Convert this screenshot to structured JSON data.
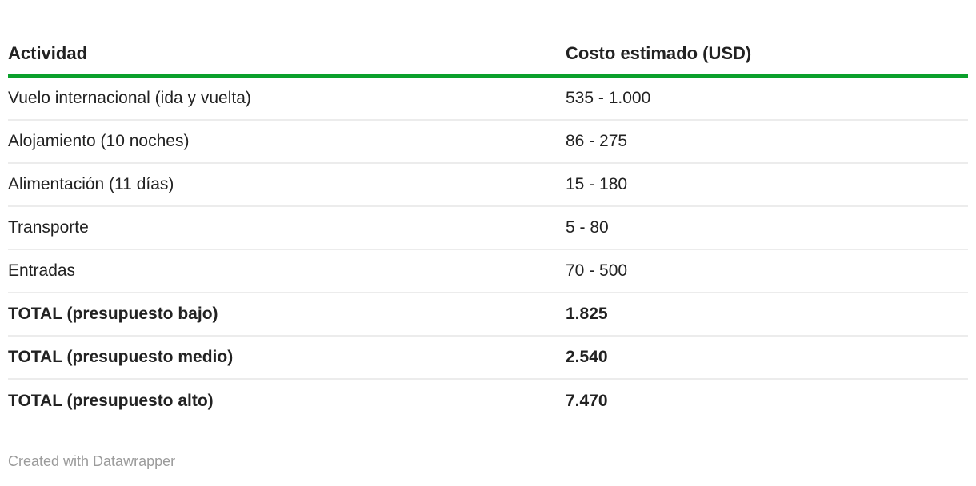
{
  "chart_data": {
    "type": "table",
    "columns": [
      "Actividad",
      "Costo estimado (USD)"
    ],
    "rows": [
      [
        "Vuelo internacional (ida y vuelta)",
        "535 - 1.000"
      ],
      [
        "Alojamiento (10 noches)",
        "86 - 275"
      ],
      [
        "Alimentación (11 días)",
        "15 - 180"
      ],
      [
        "Transporte",
        "5 - 80"
      ],
      [
        "Entradas",
        "70 - 500"
      ],
      [
        "TOTAL (presupuesto bajo)",
        "1.825"
      ],
      [
        "TOTAL (presupuesto medio)",
        "2.540"
      ],
      [
        "TOTAL (presupuesto alto)",
        "7.470"
      ]
    ]
  },
  "table": {
    "header": {
      "col_a": "Actividad",
      "col_b": "Costo estimado (USD)"
    },
    "rows": [
      {
        "actividad": "Vuelo internacional (ida y vuelta)",
        "costo": "535 - 1.000"
      },
      {
        "actividad": "Alojamiento (10 noches)",
        "costo": "86 - 275"
      },
      {
        "actividad": "Alimentación (11 días)",
        "costo": "15 - 180"
      },
      {
        "actividad": "Transporte",
        "costo": "5 - 80"
      },
      {
        "actividad": "Entradas",
        "costo": "70 - 500"
      },
      {
        "actividad": "TOTAL (presupuesto bajo)",
        "costo": "1.825"
      },
      {
        "actividad": "TOTAL (presupuesto medio)",
        "costo": "2.540"
      },
      {
        "actividad": "TOTAL (presupuesto alto)",
        "costo": "7.470"
      }
    ]
  },
  "footer": {
    "attribution": "Created with Datawrapper"
  },
  "colors": {
    "background": "#ffffff",
    "text": "#222222",
    "header_rule_green": "#0ba02c",
    "row_divider": "#ececec",
    "footer_text": "#9b9b9b"
  }
}
